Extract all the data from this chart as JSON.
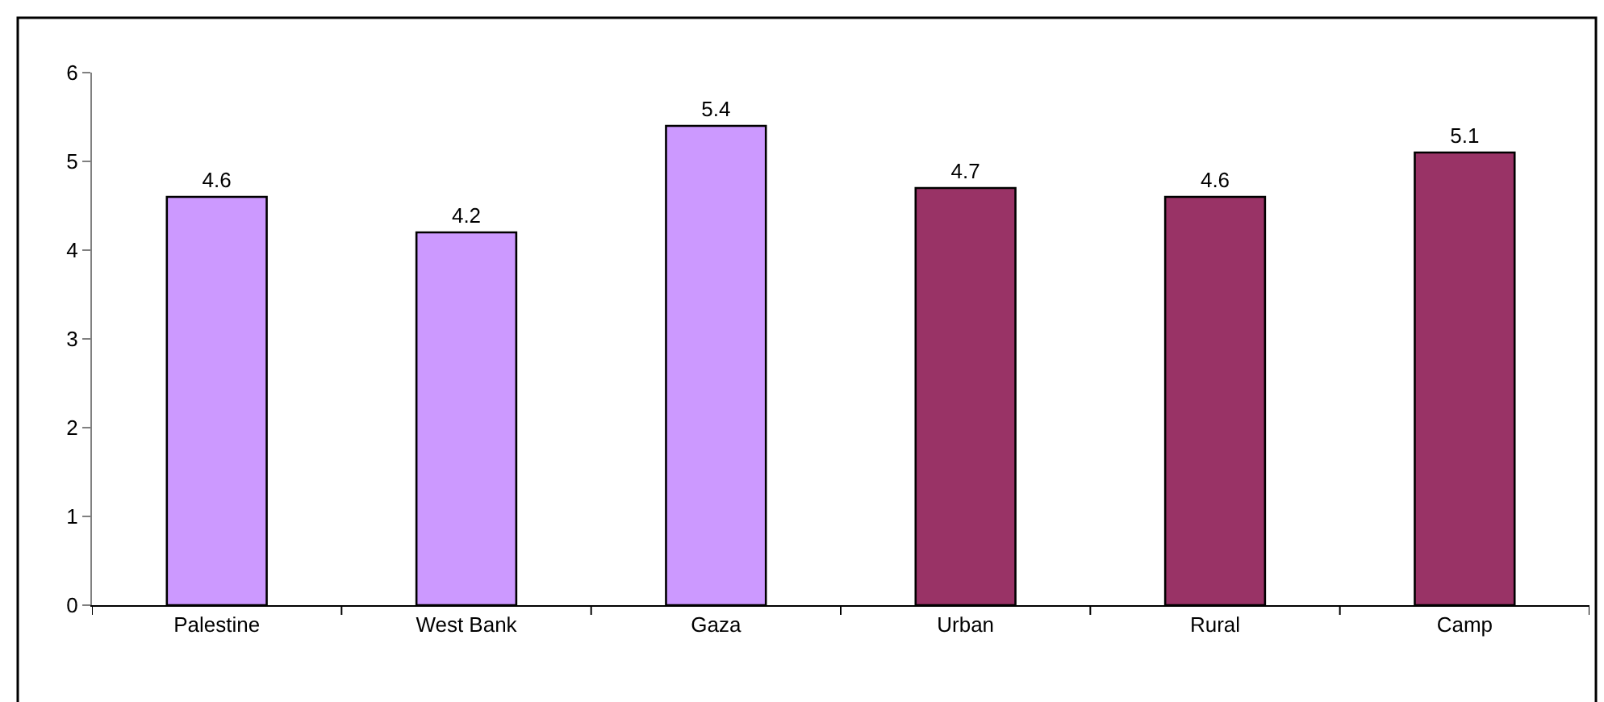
{
  "chart_data": {
    "type": "bar",
    "categories": [
      "Palestine",
      "West Bank",
      "Gaza",
      "Urban",
      "Rural",
      "Camp"
    ],
    "values": [
      4.6,
      4.2,
      5.4,
      4.7,
      4.6,
      5.1
    ],
    "colors": [
      "#cc99ff",
      "#cc99ff",
      "#cc99ff",
      "#993366",
      "#993366",
      "#993366"
    ],
    "data_labels": true,
    "ylim": [
      0,
      6
    ],
    "yticks": [
      0,
      1,
      2,
      3,
      4,
      5,
      6
    ],
    "grid": false
  }
}
